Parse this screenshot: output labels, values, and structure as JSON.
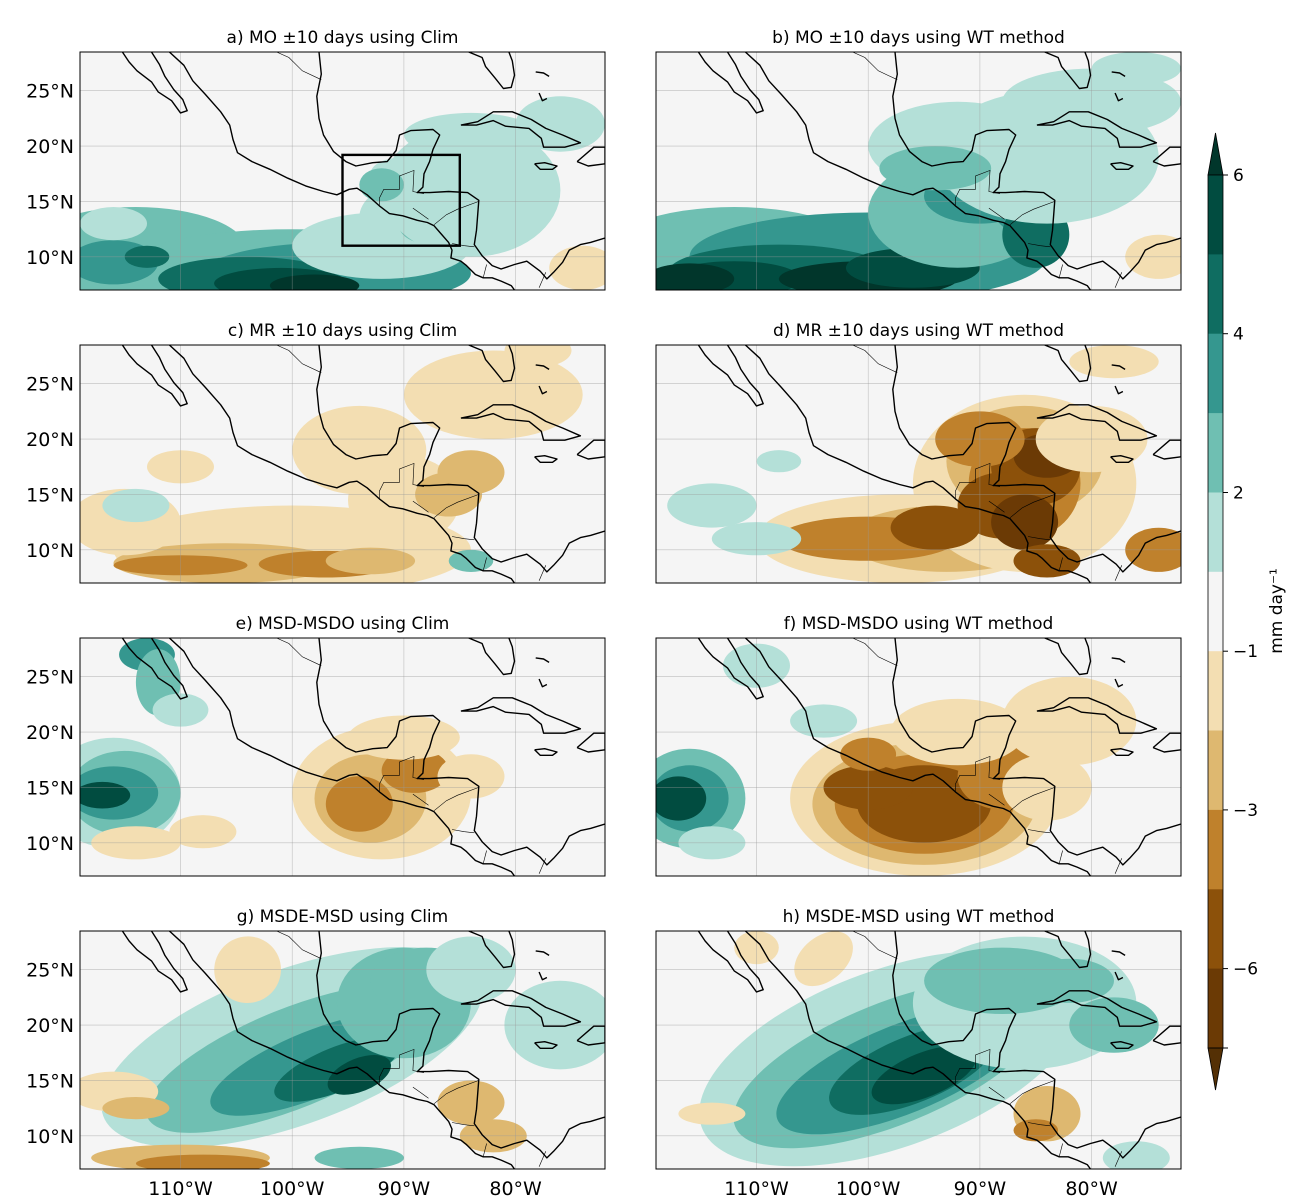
{
  "figure": {
    "panels": [
      {
        "id": "a",
        "title": "a) MO ±10 days using Clim",
        "pattern": "mo_clim",
        "box": true
      },
      {
        "id": "b",
        "title": "b) MO ±10 days using WT method",
        "pattern": "mo_wt",
        "box": false
      },
      {
        "id": "c",
        "title": "c) MR ±10 days using Clim",
        "pattern": "mr_clim",
        "box": false
      },
      {
        "id": "d",
        "title": "d) MR ±10 days using WT method",
        "pattern": "mr_wt",
        "box": false
      },
      {
        "id": "e",
        "title": "e) MSD-MSDO using Clim",
        "pattern": "msd_clim",
        "box": false
      },
      {
        "id": "f",
        "title": "f) MSD-MSDO using WT method",
        "pattern": "msd_wt",
        "box": false
      },
      {
        "id": "g",
        "title": "g) MSDE-MSD using Clim",
        "pattern": "msde_clim",
        "box": false
      },
      {
        "id": "h",
        "title": "h) MSDE-MSD using WT method",
        "pattern": "msde_wt",
        "box": false
      }
    ],
    "lat_ticks": [
      "25°N",
      "20°N",
      "15°N",
      "10°N"
    ],
    "lon_ticks": [
      "110°W",
      "100°W",
      "90°W",
      "80°W"
    ],
    "colorbar": {
      "label": "mm day⁻¹",
      "tick_labels": [
        "6",
        "4",
        "2",
        "−1",
        "−3",
        "−6"
      ],
      "levels": [
        "6+",
        "5–6",
        "4–5",
        "3–4",
        "2–3",
        "1–2",
        "−1–1",
        "−2–−1",
        "−3–−2",
        "−4–−3",
        "−5–−4",
        "−6–−5",
        "<−6"
      ],
      "colors": [
        "#01362b",
        "#014c40",
        "#0f6d61",
        "#35978f",
        "#6fbfb2",
        "#b4e0d8",
        "#f5f5f5",
        "#f3deb2",
        "#deb870",
        "#bf812c",
        "#8c510a",
        "#6b3a05",
        "#543005"
      ]
    },
    "land_color": "#f5f5f5",
    "coast_color": "#000000"
  }
}
